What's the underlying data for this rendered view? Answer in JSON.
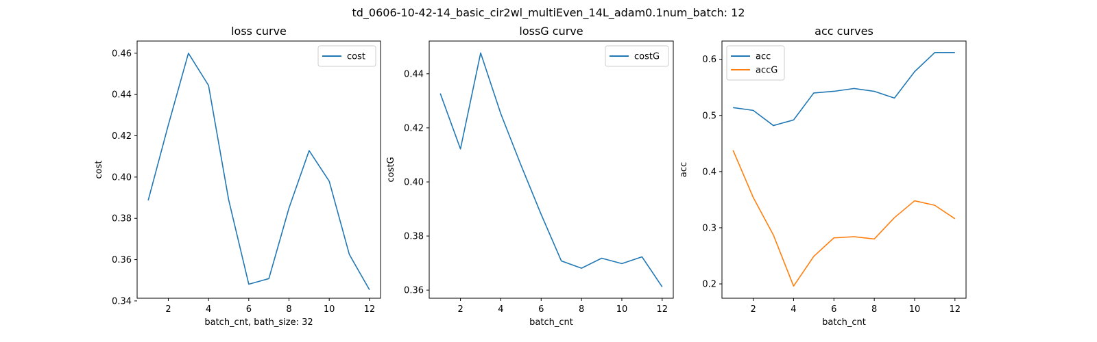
{
  "figure": {
    "suptitle": "td_0606-10-42-14_basic_cir2wl_multiEven_14L_adam0.1num_batch: 12"
  },
  "chart_data": [
    {
      "type": "line",
      "title": "loss curve",
      "xlabel": "batch_cnt, bath_size: 32",
      "ylabel": "cost",
      "xlim": [
        0.45,
        12.55
      ],
      "ylim": [
        0.3413,
        0.4659
      ],
      "xticks": [
        2,
        4,
        6,
        8,
        10,
        12
      ],
      "yticks": [
        0.34,
        0.36,
        0.38,
        0.4,
        0.42,
        0.44,
        0.46
      ],
      "ytick_labels": [
        "0.34",
        "0.36",
        "0.38",
        "0.40",
        "0.42",
        "0.44",
        "0.46"
      ],
      "legend_loc": "upper right",
      "grid": false,
      "x": [
        1,
        2,
        3,
        4,
        5,
        6,
        7,
        8,
        9,
        10,
        11,
        12
      ],
      "series": [
        {
          "name": "cost",
          "color": "#1f77b4",
          "values": [
            0.3887,
            0.4252,
            0.46,
            0.4444,
            0.389,
            0.3481,
            0.3508,
            0.385,
            0.4128,
            0.398,
            0.3625,
            0.3454
          ]
        }
      ]
    },
    {
      "type": "line",
      "title": "lossG curve",
      "xlabel": "batch_cnt",
      "ylabel": "costG",
      "xlim": [
        0.45,
        12.55
      ],
      "ylim": [
        0.357,
        0.4521
      ],
      "xticks": [
        2,
        4,
        6,
        8,
        10,
        12
      ],
      "yticks": [
        0.36,
        0.38,
        0.4,
        0.42,
        0.44
      ],
      "ytick_labels": [
        "0.36",
        "0.38",
        "0.40",
        "0.42",
        "0.44"
      ],
      "legend_loc": "upper right",
      "grid": false,
      "x": [
        1,
        2,
        3,
        4,
        5,
        6,
        7,
        8,
        9,
        10,
        11,
        12
      ],
      "series": [
        {
          "name": "costG",
          "color": "#1f77b4",
          "values": [
            0.4327,
            0.4122,
            0.4477,
            0.4252,
            0.4062,
            0.388,
            0.3708,
            0.3681,
            0.3718,
            0.3698,
            0.3723,
            0.3612
          ]
        }
      ]
    },
    {
      "type": "line",
      "title": "acc curves",
      "xlabel": "batch_cnt",
      "ylabel": "acc",
      "xlim": [
        0.45,
        12.55
      ],
      "ylim": [
        0.1745,
        0.6325
      ],
      "xticks": [
        2,
        4,
        6,
        8,
        10,
        12
      ],
      "yticks": [
        0.2,
        0.3,
        0.4,
        0.5,
        0.6
      ],
      "ytick_labels": [
        "0.2",
        "0.3",
        "0.4",
        "0.5",
        "0.6"
      ],
      "legend_loc": "upper left",
      "grid": false,
      "x": [
        1,
        2,
        3,
        4,
        5,
        6,
        7,
        8,
        9,
        10,
        11,
        12
      ],
      "series": [
        {
          "name": "acc",
          "color": "#1f77b4",
          "values": [
            0.514,
            0.509,
            0.482,
            0.492,
            0.54,
            0.543,
            0.548,
            0.543,
            0.531,
            0.578,
            0.612,
            0.612
          ]
        },
        {
          "name": "accG",
          "color": "#ff7f0e",
          "values": [
            0.438,
            0.354,
            0.287,
            0.196,
            0.249,
            0.282,
            0.284,
            0.28,
            0.318,
            0.348,
            0.34,
            0.316
          ]
        }
      ]
    }
  ]
}
